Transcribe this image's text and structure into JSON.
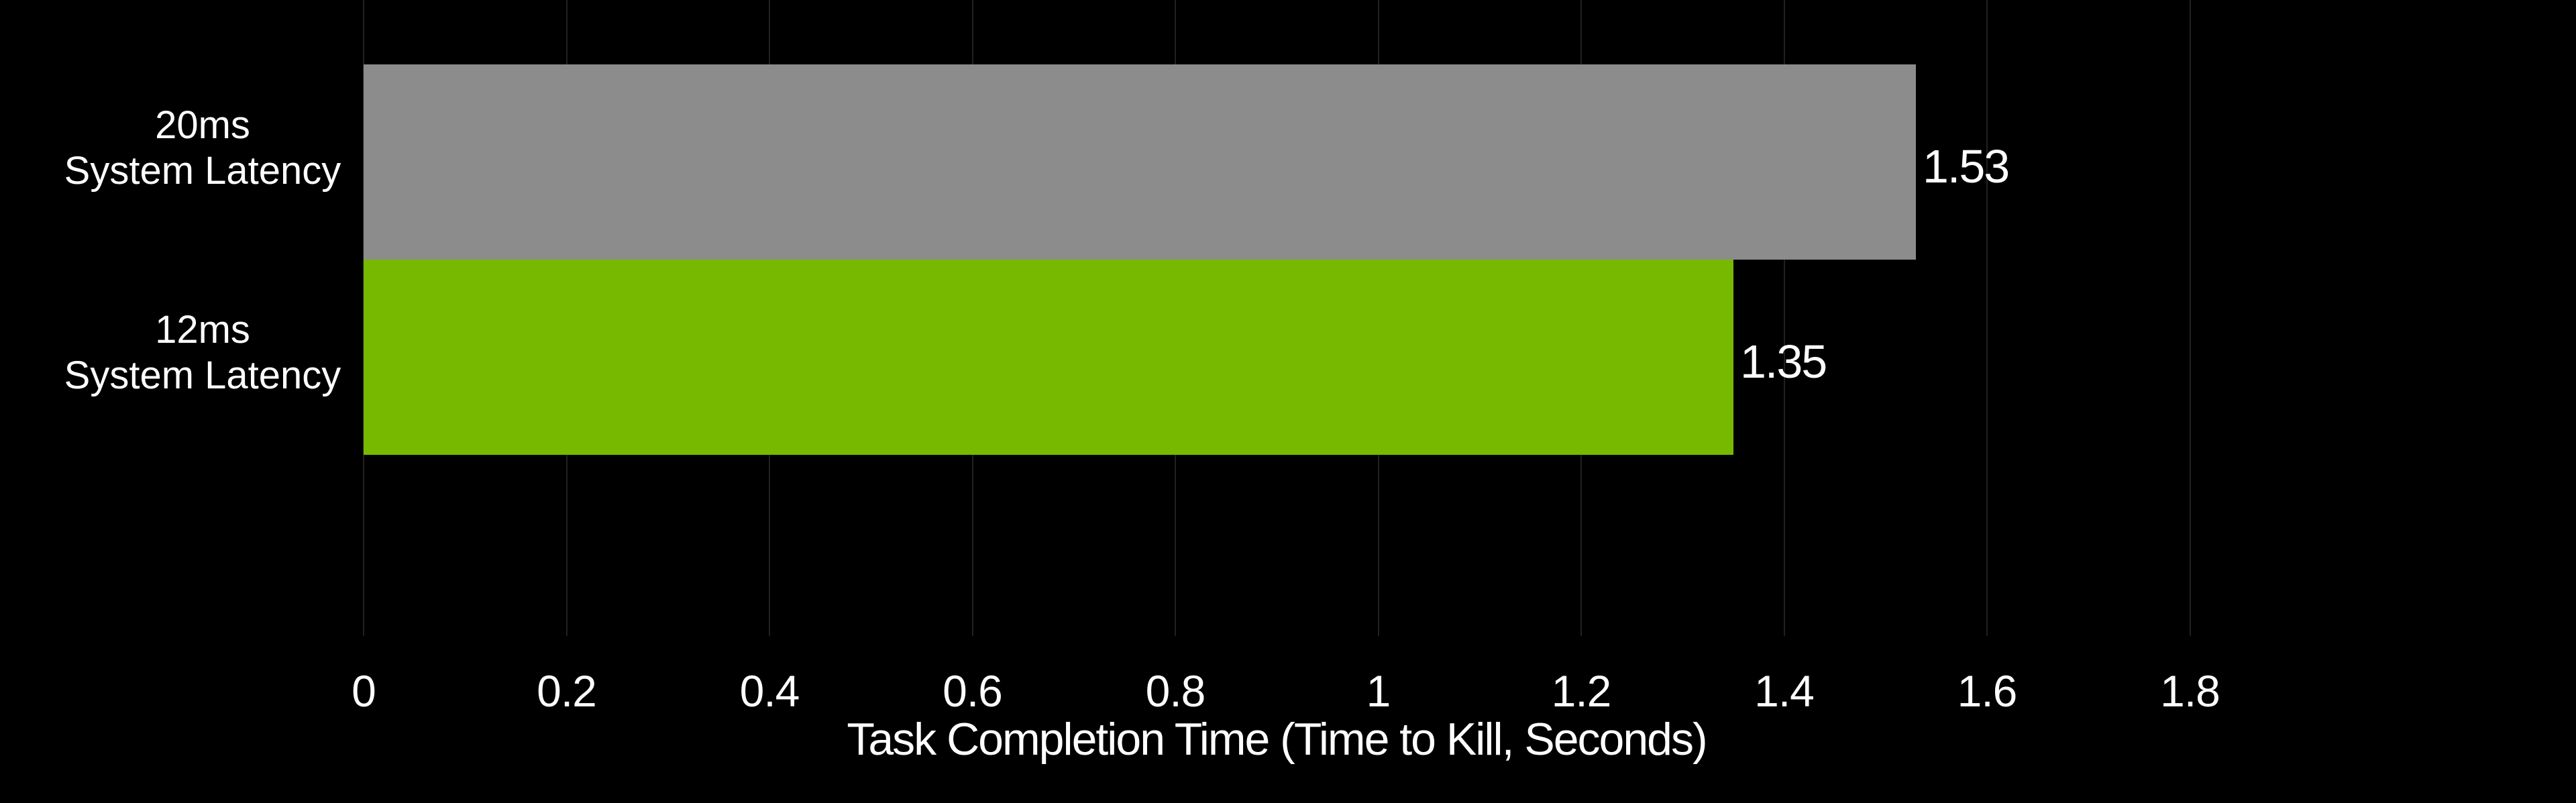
{
  "chart_data": {
    "type": "bar",
    "orientation": "horizontal",
    "title": "",
    "xlabel": "Task Completion Time (Time to Kill, Seconds)",
    "ylabel": "",
    "categories": [
      "20ms\nSystem Latency",
      "12ms\nSystem Latency"
    ],
    "values": [
      1.53,
      1.35
    ],
    "value_labels": [
      "1.53",
      "1.35"
    ],
    "bar_colors": [
      "#8C8C8C",
      "#76B900"
    ],
    "xlim": [
      0,
      1.8
    ],
    "xticks": {
      "values": [
        0,
        0.2,
        0.4,
        0.6,
        0.8,
        1,
        1.2,
        1.4,
        1.6,
        1.8
      ],
      "labels": [
        "0",
        "0.2",
        "0.4",
        "0.6",
        "0.8",
        "1",
        "1.2",
        "1.4",
        "1.6",
        "1.8"
      ]
    },
    "grid": "vertical",
    "legend": "none",
    "background_color": "#000000",
    "text_color": "#FFFFFF",
    "gridline_color": "#212121"
  }
}
